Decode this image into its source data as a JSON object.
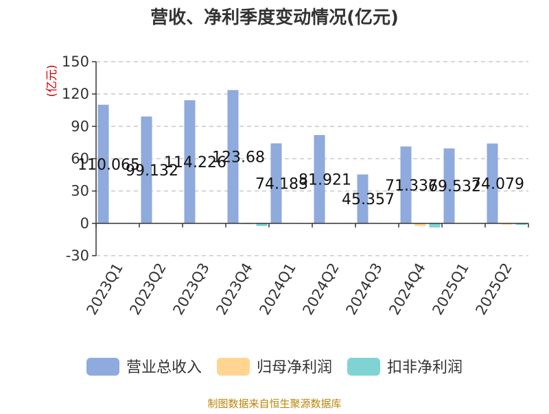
{
  "chart_data": {
    "type": "bar",
    "title": "营收、净利季度变动情况(亿元)",
    "ylabel": "(亿元)",
    "xlabel": "",
    "ylim": [
      -30,
      150
    ],
    "yticks": [
      -30,
      0,
      30,
      60,
      90,
      120,
      150
    ],
    "grid": true,
    "legend_position": "bottom",
    "categories": [
      "2023Q1",
      "2023Q2",
      "2023Q3",
      "2023Q4",
      "2024Q1",
      "2024Q2",
      "2024Q3",
      "2024Q4",
      "2025Q1",
      "2025Q2"
    ],
    "series": [
      {
        "name": "营业总收入",
        "color": "#8faadc",
        "values": [
          110.065,
          99.132,
          114.226,
          123.68,
          74.183,
          81.921,
          45.357,
          71.337,
          69.532,
          74.079
        ],
        "labels": [
          "110.065",
          "99.132",
          "114.226",
          "123.68",
          "74.183",
          "81.921",
          "45.357",
          "71.337",
          "69.532",
          "74.079"
        ]
      },
      {
        "name": "归母净利润",
        "color": "#ffd591",
        "values": [
          0.4,
          0.5,
          0.4,
          -0.8,
          0.3,
          0.5,
          0.2,
          -2.5,
          0.3,
          -1.2
        ]
      },
      {
        "name": "扣非净利润",
        "color": "#7fd3d3",
        "values": [
          0.3,
          0.3,
          0.3,
          -2.5,
          0.2,
          0.4,
          0.2,
          -3.8,
          0.2,
          -1.5
        ]
      }
    ]
  },
  "footer": {
    "source": "制图数据来自恒生聚源数据库"
  }
}
